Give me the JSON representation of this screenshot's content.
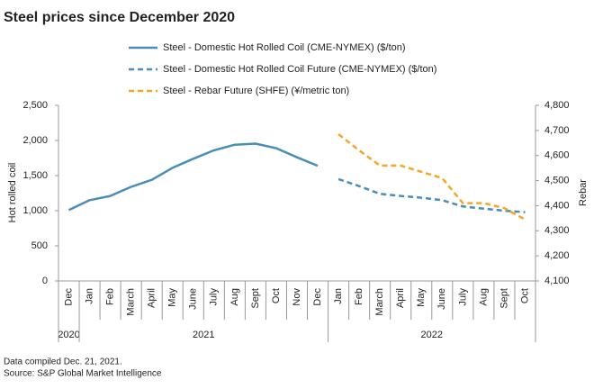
{
  "chart_data": {
    "type": "line",
    "title": "Steel prices since December 2020",
    "ylabel": "Hot rolled coil",
    "y2label": "Rebar",
    "notes": [
      "Data compiled Dec. 21, 2021.",
      "Source: S&P Global Market Intelligence"
    ],
    "categories": [
      "Dec",
      "Jan",
      "Feb",
      "March",
      "April",
      "May",
      "June",
      "July",
      "Aug",
      "Sept",
      "Oct",
      "Nov",
      "Dec",
      "Jan",
      "Feb",
      "March",
      "April",
      "May",
      "June",
      "July",
      "Aug",
      "Sept",
      "Oct"
    ],
    "groups": [
      "2020",
      "2021",
      "2022"
    ],
    "ylim": [
      0,
      2500
    ],
    "yticks": [
      0,
      500,
      {
        "value": 1000,
        "label": "1,000"
      },
      {
        "value": 1500,
        "label": "1,500"
      },
      {
        "value": 2000,
        "label": "2,000"
      },
      {
        "value": 2500,
        "label": "2,500"
      }
    ],
    "y2lim": [
      4100,
      4800
    ],
    "y2ticks": [
      {
        "value": 4100,
        "label": "4,100"
      },
      {
        "value": 4200,
        "label": "4,200"
      },
      {
        "value": 4300,
        "label": "4,300"
      },
      {
        "value": 4400,
        "label": "4,400"
      },
      {
        "value": 4500,
        "label": "4,500"
      },
      {
        "value": 4600,
        "label": "4,600"
      },
      {
        "value": 4700,
        "label": "4,700"
      },
      {
        "value": 4800,
        "label": "4,800"
      }
    ],
    "series": [
      {
        "name": "Steel - Domestic Hot Rolled Coil (CME-NYMEX) ($/ton)",
        "color": "#4a8db7",
        "dash": false,
        "values": [
          1010,
          1150,
          1210,
          1340,
          1440,
          1610,
          1740,
          1860,
          1940,
          1955,
          1890,
          1760,
          1640,
          null,
          null,
          null,
          null,
          null,
          null,
          null,
          null,
          null,
          null
        ]
      },
      {
        "name": "Steel - Domestic Hot Rolled Coil Future (CME-NYMEX) ($/ton)",
        "color": "#4a8db7",
        "dash": true,
        "values": [
          null,
          null,
          null,
          null,
          null,
          null,
          null,
          null,
          null,
          null,
          null,
          null,
          null,
          1450,
          1350,
          1240,
          1210,
          1185,
          1150,
          1060,
          1030,
          1000,
          980
        ]
      },
      {
        "name": "Steel - Rebar Future (SHFE) (¥/metric ton)",
        "color": "#f5a623",
        "dash": true,
        "axis": "y2",
        "values": [
          null,
          null,
          null,
          null,
          null,
          null,
          null,
          null,
          null,
          null,
          null,
          null,
          null,
          4685,
          4620,
          4560,
          4560,
          4535,
          4510,
          4410,
          4410,
          4390,
          4345
        ]
      }
    ]
  }
}
